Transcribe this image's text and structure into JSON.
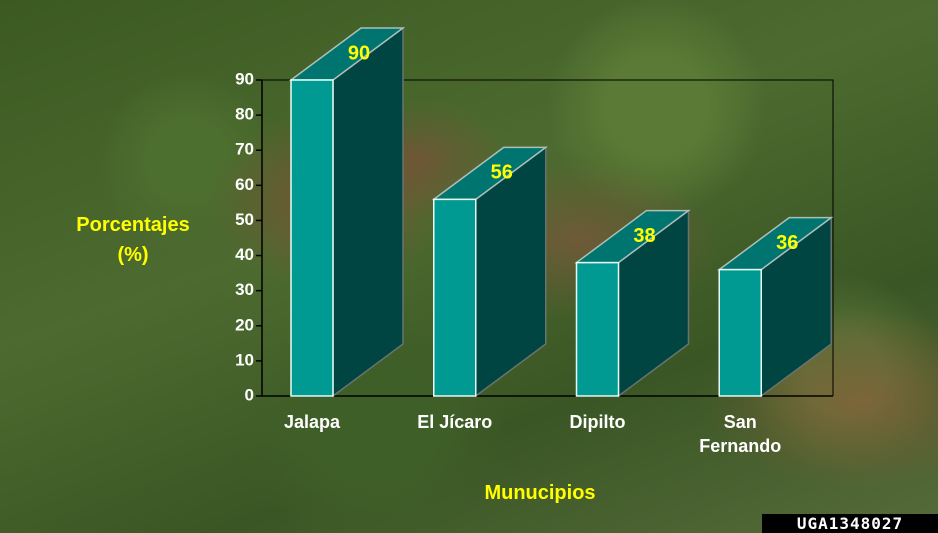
{
  "chart_data": {
    "type": "bar3d",
    "categories": [
      "Jalapa",
      "El Jícaro",
      "Dipilto",
      "San Fernando"
    ],
    "values": [
      90,
      56,
      38,
      36
    ],
    "color": "#009a92",
    "ylim": [
      0,
      90
    ],
    "yticks": [
      0,
      10,
      20,
      30,
      40,
      50,
      60,
      70,
      80,
      90
    ],
    "y_label": "Porcentajes (%)",
    "x_label": "Munucipios"
  },
  "watermark": "UGA1348027"
}
